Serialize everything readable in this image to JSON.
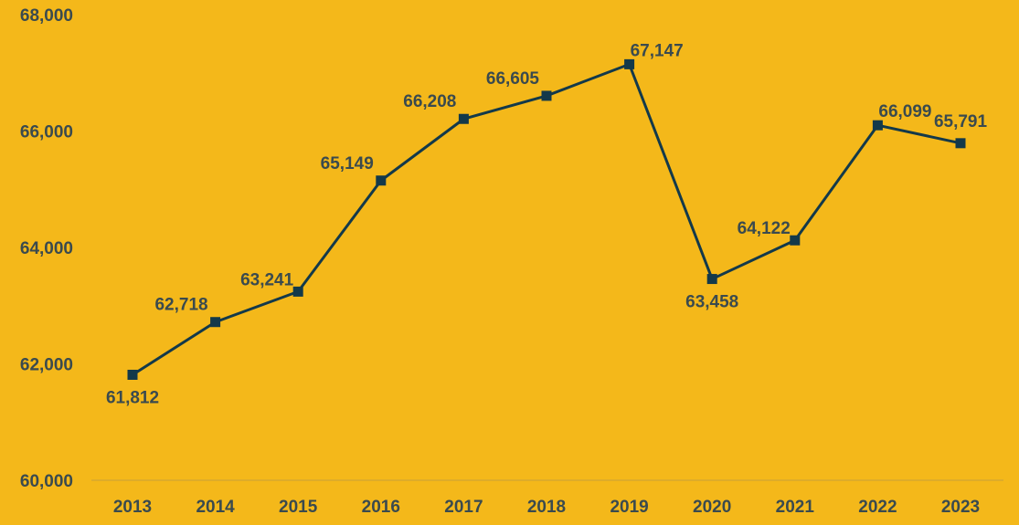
{
  "chart_data": {
    "type": "line",
    "title": "",
    "xlabel": "",
    "ylabel": "",
    "categories": [
      "2013",
      "2014",
      "2015",
      "2016",
      "2017",
      "2018",
      "2019",
      "2020",
      "2021",
      "2022",
      "2023"
    ],
    "series": [
      {
        "values": [
          61812,
          62718,
          63241,
          65149,
          66208,
          66605,
          67147,
          63458,
          64122,
          66099,
          65791
        ],
        "data_labels": [
          "61,812",
          "62,718",
          "63,241",
          "65,149",
          "66,208",
          "66,605",
          "67,147",
          "63,458",
          "64,122",
          "66,099",
          "65,791"
        ],
        "color": "#13394A",
        "marker": "square"
      }
    ],
    "ylim": [
      60000,
      68000
    ],
    "y_ticks": [
      60000,
      62000,
      64000,
      66000,
      68000
    ],
    "y_tick_labels": [
      "60,000",
      "62,000",
      "64,000",
      "66,000",
      "68,000"
    ],
    "grid": false,
    "legend": "none",
    "colors": {
      "background": "#F4B81A",
      "line": "#13394A",
      "text": "#3A4A4E",
      "axis": "#C9A03A"
    }
  }
}
